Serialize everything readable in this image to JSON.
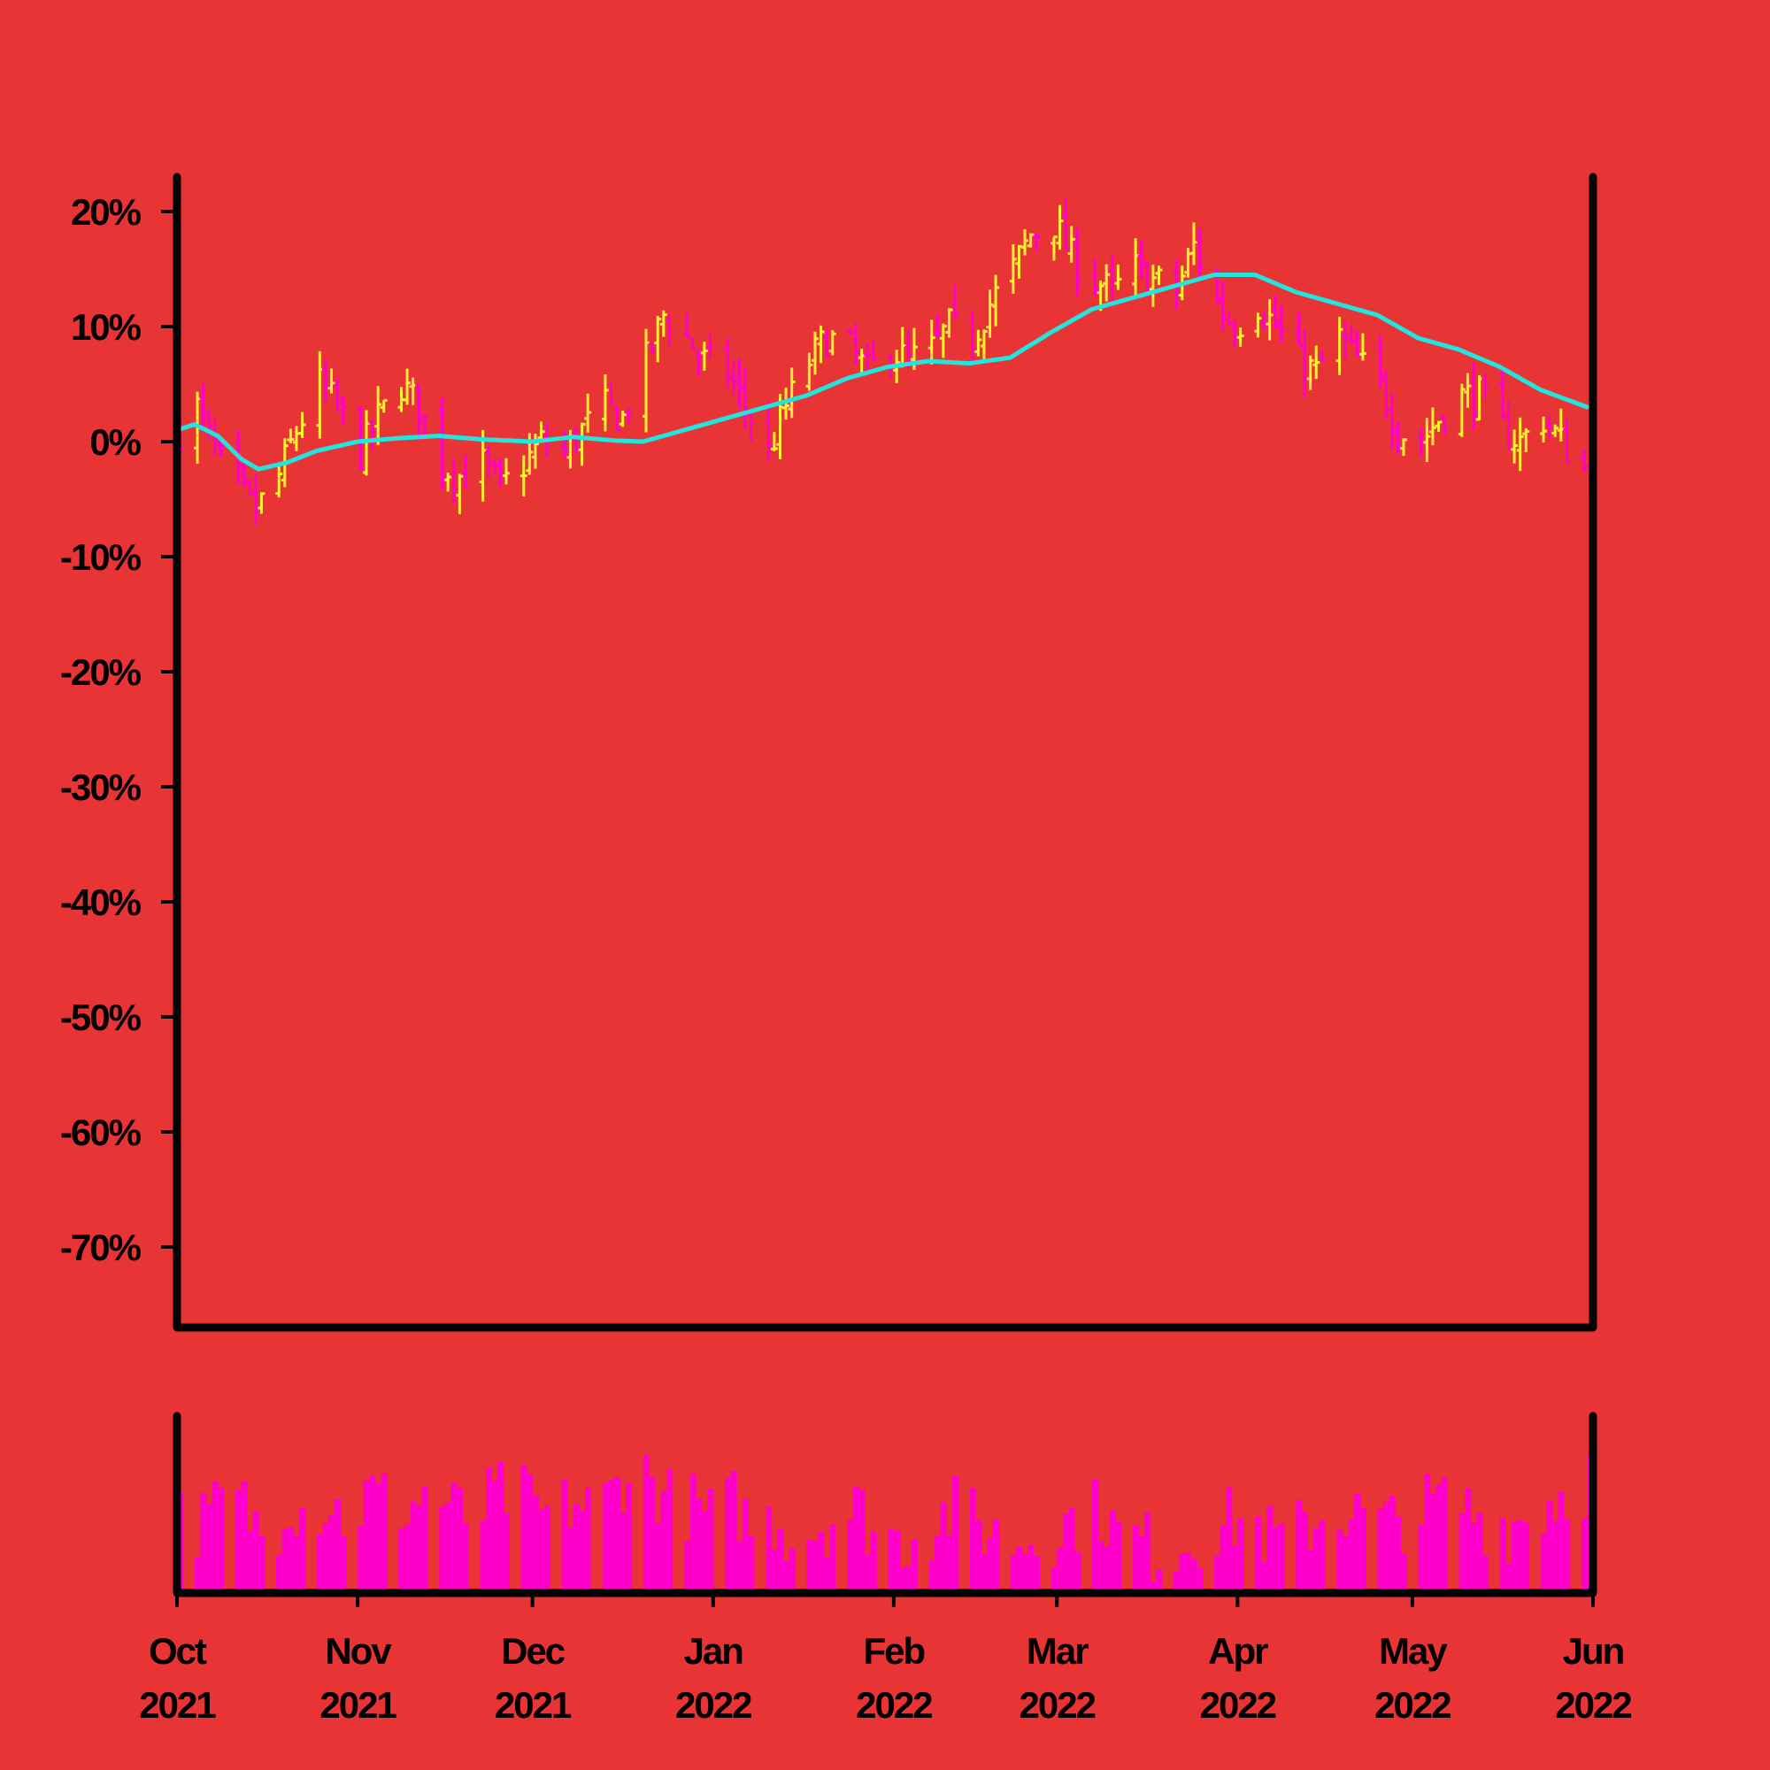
{
  "chart_data": {
    "type": "ohlc",
    "title": "",
    "xlabel": "",
    "ylabel": "",
    "colors": {
      "background": "#e83434",
      "up": "#ffee33",
      "down": "#ff00cc",
      "moving_average": "#22e5dd",
      "volume": "#ff00cc",
      "axes": "#000000"
    },
    "ylim": [
      -77,
      23
    ],
    "y_ticks": [
      {
        "value": 20,
        "label": "20%"
      },
      {
        "value": 10,
        "label": "10%"
      },
      {
        "value": 0,
        "label": "0%"
      },
      {
        "value": -10,
        "label": "-10%"
      },
      {
        "value": -20,
        "label": "-20%"
      },
      {
        "value": -30,
        "label": "-30%"
      },
      {
        "value": -40,
        "label": "-40%"
      },
      {
        "value": -50,
        "label": "-50%"
      },
      {
        "value": -60,
        "label": "-60%"
      },
      {
        "value": -70,
        "label": "-70%"
      }
    ],
    "x_range": [
      "2021-10-01",
      "2022-06-01"
    ],
    "x_ticks": [
      {
        "date": "2021-10-01",
        "month": "Oct",
        "year": "2021"
      },
      {
        "date": "2021-11-01",
        "month": "Nov",
        "year": "2021"
      },
      {
        "date": "2021-12-01",
        "month": "Dec",
        "year": "2021"
      },
      {
        "date": "2022-01-01",
        "month": "Jan",
        "year": "2022"
      },
      {
        "date": "2022-02-01",
        "month": "Feb",
        "year": "2022"
      },
      {
        "date": "2022-03-01",
        "month": "Mar",
        "year": "2022"
      },
      {
        "date": "2022-04-01",
        "month": "Apr",
        "year": "2022"
      },
      {
        "date": "2022-05-01",
        "month": "May",
        "year": "2022"
      },
      {
        "date": "2022-06-01",
        "month": "Jun",
        "year": "2022"
      }
    ],
    "price_close_path": [
      [
        "2021-10-01",
        1
      ],
      [
        "2021-10-04",
        3
      ],
      [
        "2021-10-07",
        -1
      ],
      [
        "2021-10-11",
        -4
      ],
      [
        "2021-10-14",
        -6
      ],
      [
        "2021-10-18",
        -3
      ],
      [
        "2021-10-21",
        1
      ],
      [
        "2021-10-25",
        5
      ],
      [
        "2021-10-28",
        3
      ],
      [
        "2021-11-01",
        -1
      ],
      [
        "2021-11-04",
        2
      ],
      [
        "2021-11-08",
        5
      ],
      [
        "2021-11-11",
        3
      ],
      [
        "2021-11-15",
        -2
      ],
      [
        "2021-11-18",
        -3
      ],
      [
        "2021-11-22",
        -2
      ],
      [
        "2021-11-25",
        -4
      ],
      [
        "2021-11-29",
        -2
      ],
      [
        "2021-12-02",
        0
      ],
      [
        "2021-12-06",
        -1
      ],
      [
        "2021-12-09",
        1
      ],
      [
        "2021-12-13",
        3
      ],
      [
        "2021-12-16",
        2
      ],
      [
        "2021-12-20",
        7
      ],
      [
        "2021-12-23",
        11
      ],
      [
        "2021-12-27",
        9
      ],
      [
        "2021-12-30",
        7
      ],
      [
        "2022-01-03",
        6
      ],
      [
        "2022-01-06",
        3
      ],
      [
        "2022-01-10",
        -1
      ],
      [
        "2022-01-13",
        3
      ],
      [
        "2022-01-17",
        7
      ],
      [
        "2022-01-20",
        9
      ],
      [
        "2022-01-24",
        8
      ],
      [
        "2022-01-27",
        6
      ],
      [
        "2022-01-31",
        8
      ],
      [
        "2022-02-03",
        7
      ],
      [
        "2022-02-07",
        8
      ],
      [
        "2022-02-10",
        10
      ],
      [
        "2022-02-14",
        9
      ],
      [
        "2022-02-17",
        12
      ],
      [
        "2022-02-21",
        15
      ],
      [
        "2022-02-24",
        18
      ],
      [
        "2022-02-28",
        19
      ],
      [
        "2022-03-03",
        16
      ],
      [
        "2022-03-07",
        14
      ],
      [
        "2022-03-10",
        13
      ],
      [
        "2022-03-14",
        15
      ],
      [
        "2022-03-17",
        14
      ],
      [
        "2022-03-21",
        13
      ],
      [
        "2022-03-24",
        17
      ],
      [
        "2022-03-28",
        12
      ],
      [
        "2022-03-31",
        10
      ],
      [
        "2022-04-04",
        12
      ],
      [
        "2022-04-07",
        10
      ],
      [
        "2022-04-11",
        7
      ],
      [
        "2022-04-14",
        6
      ],
      [
        "2022-04-18",
        9
      ],
      [
        "2022-04-21",
        7
      ],
      [
        "2022-04-25",
        5
      ],
      [
        "2022-04-28",
        1
      ],
      [
        "2022-05-02",
        0
      ],
      [
        "2022-05-05",
        2
      ],
      [
        "2022-05-09",
        4
      ],
      [
        "2022-05-12",
        4
      ],
      [
        "2022-05-16",
        1
      ],
      [
        "2022-05-19",
        0
      ],
      [
        "2022-05-23",
        2
      ],
      [
        "2022-05-26",
        0
      ],
      [
        "2022-05-31",
        -3
      ]
    ],
    "moving_average": [
      [
        "2021-10-01",
        1
      ],
      [
        "2021-10-04",
        1.5
      ],
      [
        "2021-10-08",
        0.5
      ],
      [
        "2021-10-12",
        -1.5
      ],
      [
        "2021-10-15",
        -2.4
      ],
      [
        "2021-10-20",
        -1.8
      ],
      [
        "2021-10-25",
        -0.8
      ],
      [
        "2021-11-01",
        0
      ],
      [
        "2021-11-08",
        0.3
      ],
      [
        "2021-11-15",
        0.5
      ],
      [
        "2021-11-22",
        0.2
      ],
      [
        "2021-12-01",
        0
      ],
      [
        "2021-12-08",
        0.4
      ],
      [
        "2021-12-15",
        0.1
      ],
      [
        "2021-12-20",
        0
      ],
      [
        "2021-12-27",
        1
      ],
      [
        "2022-01-03",
        2
      ],
      [
        "2022-01-10",
        3
      ],
      [
        "2022-01-17",
        4
      ],
      [
        "2022-01-24",
        5.5
      ],
      [
        "2022-01-31",
        6.5
      ],
      [
        "2022-02-07",
        7
      ],
      [
        "2022-02-14",
        6.8
      ],
      [
        "2022-02-21",
        7.3
      ],
      [
        "2022-02-28",
        9.5
      ],
      [
        "2022-03-07",
        11.5
      ],
      [
        "2022-03-14",
        12.5
      ],
      [
        "2022-03-21",
        13.5
      ],
      [
        "2022-03-28",
        14.5
      ],
      [
        "2022-04-04",
        14.5
      ],
      [
        "2022-04-11",
        13
      ],
      [
        "2022-04-18",
        12
      ],
      [
        "2022-04-25",
        11
      ],
      [
        "2022-05-02",
        9
      ],
      [
        "2022-05-09",
        8
      ],
      [
        "2022-05-16",
        6.5
      ],
      [
        "2022-05-23",
        4.5
      ],
      [
        "2022-05-31",
        3
      ]
    ],
    "volume_level_path": [
      0.45,
      0.4,
      0.55,
      0.5,
      0.35,
      0.6,
      0.5,
      0.55,
      0.45,
      0.6,
      0.55,
      0.5,
      0.6,
      0.5,
      0.45,
      0.55,
      0.6,
      0.5,
      0.45,
      0.55,
      0.5,
      0.6,
      0.75,
      0.65,
      0.55,
      0.5,
      0.45,
      0.55,
      0.4,
      0.45,
      0.35,
      0.4,
      0.45,
      0.5,
      0.4,
      0.3,
      0.35,
      0.45,
      0.5,
      0.4,
      0.35,
      0.3,
      0.35,
      0.4,
      0.45,
      0.5,
      0.35,
      0.3,
      0.25,
      0.3,
      0.35,
      0.4,
      0.45,
      0.35,
      0.3,
      0.4,
      0.45,
      0.5,
      0.45,
      0.4,
      0.45,
      0.5,
      0.55,
      0.5,
      0.45,
      0.4,
      0.45,
      0.55,
      0.6,
      0.7
    ]
  }
}
